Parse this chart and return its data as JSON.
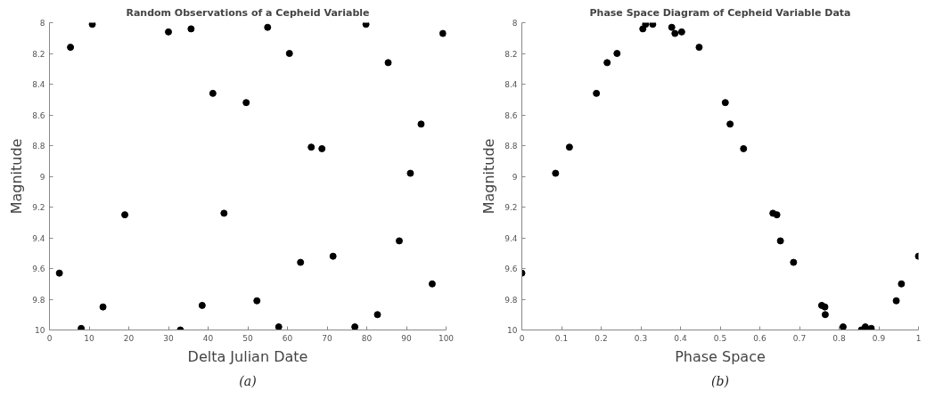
{
  "chart_data": [
    {
      "type": "scatter",
      "title": "Random Observations of a Cepheid Variable",
      "xlabel": "Delta Julian Date",
      "ylabel": "Magnitude",
      "annotations": [
        "(a)"
      ],
      "marker": "circle",
      "grid": false,
      "x": [
        2.5,
        5.3,
        8,
        10.8,
        13.5,
        19,
        30,
        33,
        35.7,
        38.5,
        41.2,
        44,
        49.6,
        52.3,
        55,
        57.8,
        60.5,
        63.3,
        66,
        68.7,
        71.5,
        77,
        79.8,
        82.7,
        85.4,
        88.2,
        91,
        93.7,
        96.5,
        99.2
      ],
      "series": [
        {
          "color": "#000000",
          "values": [
            9.63,
            8.16,
            9.99,
            8.01,
            9.85,
            9.25,
            8.06,
            10.0,
            8.04,
            9.84,
            8.46,
            9.24,
            8.52,
            9.81,
            8.03,
            9.98,
            8.2,
            9.56,
            8.81,
            8.82,
            9.52,
            9.98,
            8.01,
            9.9,
            8.26,
            9.42,
            8.98,
            8.66,
            9.7,
            8.07
          ]
        }
      ],
      "xlim": [
        0,
        100
      ],
      "xticks": [
        0,
        10,
        20,
        30,
        40,
        50,
        60,
        70,
        80,
        90,
        100
      ],
      "ylim": [
        10,
        8
      ],
      "yticks": [
        8,
        8.2,
        8.4,
        8.6,
        8.8,
        9,
        9.2,
        9.4,
        9.6,
        9.8,
        10
      ]
    },
    {
      "type": "scatter",
      "title": "Phase Space Diagram of Cepheid Variable Data",
      "xlabel": "Phase Space",
      "ylabel": "Magnitude",
      "annotations": [
        "(b)"
      ],
      "marker": "circle",
      "grid": false,
      "x": [
        0,
        0.085,
        0.12,
        0.188,
        0.215,
        0.24,
        0.305,
        0.312,
        0.33,
        0.378,
        0.386,
        0.403,
        0.447,
        0.513,
        0.525,
        0.559,
        0.633,
        0.643,
        0.652,
        0.685,
        0.756,
        0.764,
        0.765,
        0.81,
        0.856,
        0.866,
        0.881,
        0.944,
        0.957,
        1.0
      ],
      "series": [
        {
          "color": "#000000",
          "values": [
            9.63,
            8.98,
            8.81,
            8.46,
            8.26,
            8.2,
            8.04,
            8.01,
            8.01,
            8.03,
            8.07,
            8.06,
            8.16,
            8.52,
            8.66,
            8.82,
            9.24,
            9.25,
            9.42,
            9.56,
            9.84,
            9.85,
            9.9,
            9.98,
            10.0,
            9.98,
            9.99,
            9.81,
            9.7,
            9.52
          ]
        }
      ],
      "xlim": [
        0,
        1
      ],
      "xticks": [
        0,
        0.1,
        0.2,
        0.3,
        0.4,
        0.5,
        0.6,
        0.7,
        0.8,
        0.9,
        1
      ],
      "ylim": [
        10,
        8
      ],
      "yticks": [
        8,
        8.2,
        8.4,
        8.6,
        8.8,
        9,
        9.2,
        9.4,
        9.6,
        9.8,
        10
      ]
    }
  ]
}
